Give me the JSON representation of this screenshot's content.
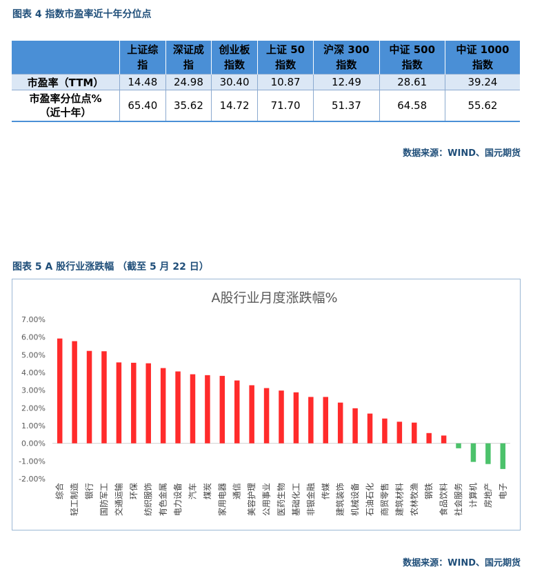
{
  "fig4": {
    "title": "图表 4 指数市盈率近十年分位点",
    "columns": [
      "上证综\n指",
      "深证成\n指",
      "创业板\n指数",
      "上证 50\n指数",
      "沪深 300\n指数",
      "中证 500\n指数",
      "中证 1000\n指数"
    ],
    "rows": [
      {
        "label": "市盈率（TTM）",
        "values": [
          "14.48",
          "24.98",
          "30.40",
          "10.87",
          "12.49",
          "28.61",
          "39.24"
        ]
      },
      {
        "label": "市盈率分位点%\n（近十年）",
        "values": [
          "65.40",
          "35.62",
          "14.72",
          "71.70",
          "51.37",
          "64.58",
          "55.62"
        ]
      }
    ],
    "source": "数据来源：WIND、国元期货"
  },
  "fig5": {
    "title": "图表 5 A 股行业涨跌幅 （截至 5 月 22 日）",
    "source": "数据来源：WIND、国元期货"
  },
  "chart_data": {
    "type": "bar",
    "title": "A股行业月度涨跌幅%",
    "categories": [
      "综合",
      "轻工制造",
      "银行",
      "国防军工",
      "交通运输",
      "环保",
      "纺织服饰",
      "有色金属",
      "电力设备",
      "汽车",
      "煤炭",
      "家用电器",
      "通信",
      "美容护理",
      "公用事业",
      "医药生物",
      "基础化工",
      "非银金融",
      "传媒",
      "建筑装饰",
      "机械设备",
      "石油石化",
      "商贸零售",
      "建筑材料",
      "农林牧渔",
      "钢铁",
      "食品饮料",
      "社会服务",
      "计算机",
      "房地产",
      "电子"
    ],
    "values": [
      5.92,
      5.77,
      5.22,
      5.2,
      4.57,
      4.55,
      4.52,
      4.25,
      4.06,
      3.9,
      3.85,
      3.81,
      3.55,
      3.28,
      3.12,
      2.98,
      2.88,
      2.62,
      2.62,
      2.3,
      1.98,
      1.68,
      1.4,
      1.22,
      1.17,
      0.58,
      0.44,
      -0.28,
      -1.05,
      -1.17,
      -1.45
    ],
    "ylim": [
      -2,
      7
    ],
    "yticks": [
      "-2.00%",
      "-1.00%",
      "0.00%",
      "1.00%",
      "2.00%",
      "3.00%",
      "4.00%",
      "5.00%",
      "6.00%",
      "7.00%"
    ],
    "grid": false,
    "colors": {
      "positive": "#ff2b2b",
      "negative": "#4cc26b",
      "axis": "#d0d0d0",
      "title": "#595959"
    }
  }
}
